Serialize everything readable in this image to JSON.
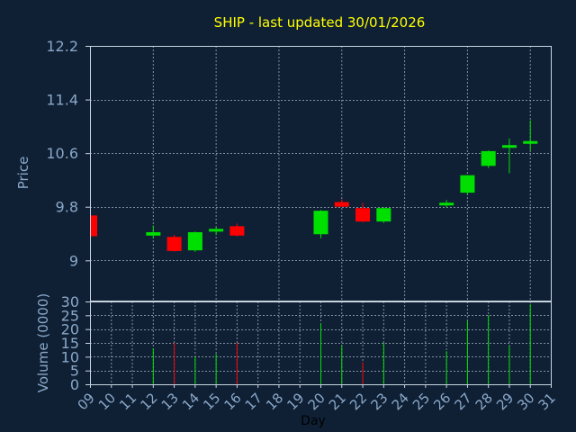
{
  "chart_data": [
    {
      "type": "candlestick",
      "title": "SHIP - last updated 30/01/2026",
      "ylabel": "Price",
      "ylim": [
        8.4,
        12.2
      ],
      "yticks": [
        "12.2",
        "11.4",
        "10.6",
        "9.8",
        "9"
      ],
      "ytick_values": [
        12.2,
        11.4,
        10.6,
        9.8,
        9.0
      ],
      "grid": true,
      "candles": [
        {
          "day": 9,
          "open": 9.67,
          "high": 9.67,
          "low": 9.36,
          "close": 9.36
        },
        {
          "day": 12,
          "open": 9.37,
          "high": 9.52,
          "low": 9.33,
          "close": 9.42
        },
        {
          "day": 13,
          "open": 9.35,
          "high": 9.38,
          "low": 9.13,
          "close": 9.14
        },
        {
          "day": 14,
          "open": 9.15,
          "high": 9.43,
          "low": 9.13,
          "close": 9.42
        },
        {
          "day": 15,
          "open": 9.45,
          "high": 9.49,
          "low": 9.38,
          "close": 9.47
        },
        {
          "day": 16,
          "open": 9.51,
          "high": 9.55,
          "low": 9.36,
          "close": 9.37
        },
        {
          "day": 20,
          "open": 9.39,
          "high": 9.75,
          "low": 9.33,
          "close": 9.74
        },
        {
          "day": 21,
          "open": 9.87,
          "high": 9.91,
          "low": 9.82,
          "close": 9.8
        },
        {
          "day": 22,
          "open": 9.78,
          "high": 9.86,
          "low": 9.57,
          "close": 9.58
        },
        {
          "day": 23,
          "open": 9.58,
          "high": 9.79,
          "low": 9.56,
          "close": 9.78
        },
        {
          "day": 26,
          "open": 9.84,
          "high": 9.9,
          "low": 9.79,
          "close": 9.86
        },
        {
          "day": 27,
          "open": 10.01,
          "high": 10.27,
          "low": 9.98,
          "close": 10.27
        },
        {
          "day": 28,
          "open": 10.41,
          "high": 10.64,
          "low": 10.38,
          "close": 10.63
        },
        {
          "day": 29,
          "open": 10.69,
          "high": 10.82,
          "low": 10.3,
          "close": 10.72
        },
        {
          "day": 30,
          "open": 10.78,
          "high": 11.09,
          "low": 10.64,
          "close": 10.78
        }
      ],
      "colors": {
        "up": "#00e000",
        "down": "#ff0000"
      }
    },
    {
      "type": "bar",
      "ylabel": "Volume (0000)",
      "xlabel": "Day",
      "ylim": [
        0,
        30
      ],
      "yticks": [
        "30",
        "25",
        "20",
        "15",
        "10",
        "5",
        "0"
      ],
      "ytick_values": [
        30,
        25,
        20,
        15,
        10,
        5,
        0
      ],
      "xticks": [
        "09",
        "10",
        "11",
        "12",
        "13",
        "14",
        "15",
        "16",
        "17",
        "18",
        "19",
        "20",
        "21",
        "22",
        "23",
        "24",
        "25",
        "26",
        "27",
        "28",
        "29",
        "30",
        "31"
      ],
      "xtick_values": [
        9,
        10,
        11,
        12,
        13,
        14,
        15,
        16,
        17,
        18,
        19,
        20,
        21,
        22,
        23,
        24,
        25,
        26,
        27,
        28,
        29,
        30,
        31
      ],
      "xlim": [
        9,
        31
      ],
      "grid": true,
      "bars": [
        {
          "day": 9,
          "value": 1,
          "direction": "down"
        },
        {
          "day": 12,
          "value": 13,
          "direction": "up"
        },
        {
          "day": 13,
          "value": 15,
          "direction": "down"
        },
        {
          "day": 14,
          "value": 10,
          "direction": "up"
        },
        {
          "day": 15,
          "value": 11,
          "direction": "up"
        },
        {
          "day": 16,
          "value": 15,
          "direction": "down"
        },
        {
          "day": 20,
          "value": 22,
          "direction": "up"
        },
        {
          "day": 21,
          "value": 14,
          "direction": "up"
        },
        {
          "day": 22,
          "value": 8,
          "direction": "down"
        },
        {
          "day": 23,
          "value": 15,
          "direction": "up"
        },
        {
          "day": 26,
          "value": 12,
          "direction": "up"
        },
        {
          "day": 27,
          "value": 23,
          "direction": "up"
        },
        {
          "day": 28,
          "value": 25,
          "direction": "up"
        },
        {
          "day": 29,
          "value": 14,
          "direction": "up"
        },
        {
          "day": 30,
          "value": 29,
          "direction": "up"
        }
      ]
    }
  ],
  "colors": {
    "background": "#0f2035",
    "plot_background": "#0f2035",
    "frame": "#c8d4e0",
    "grid": "#8090a0",
    "axis_text": "#8aa8c8",
    "title": "#ffff00",
    "xlabel": "#000000"
  }
}
